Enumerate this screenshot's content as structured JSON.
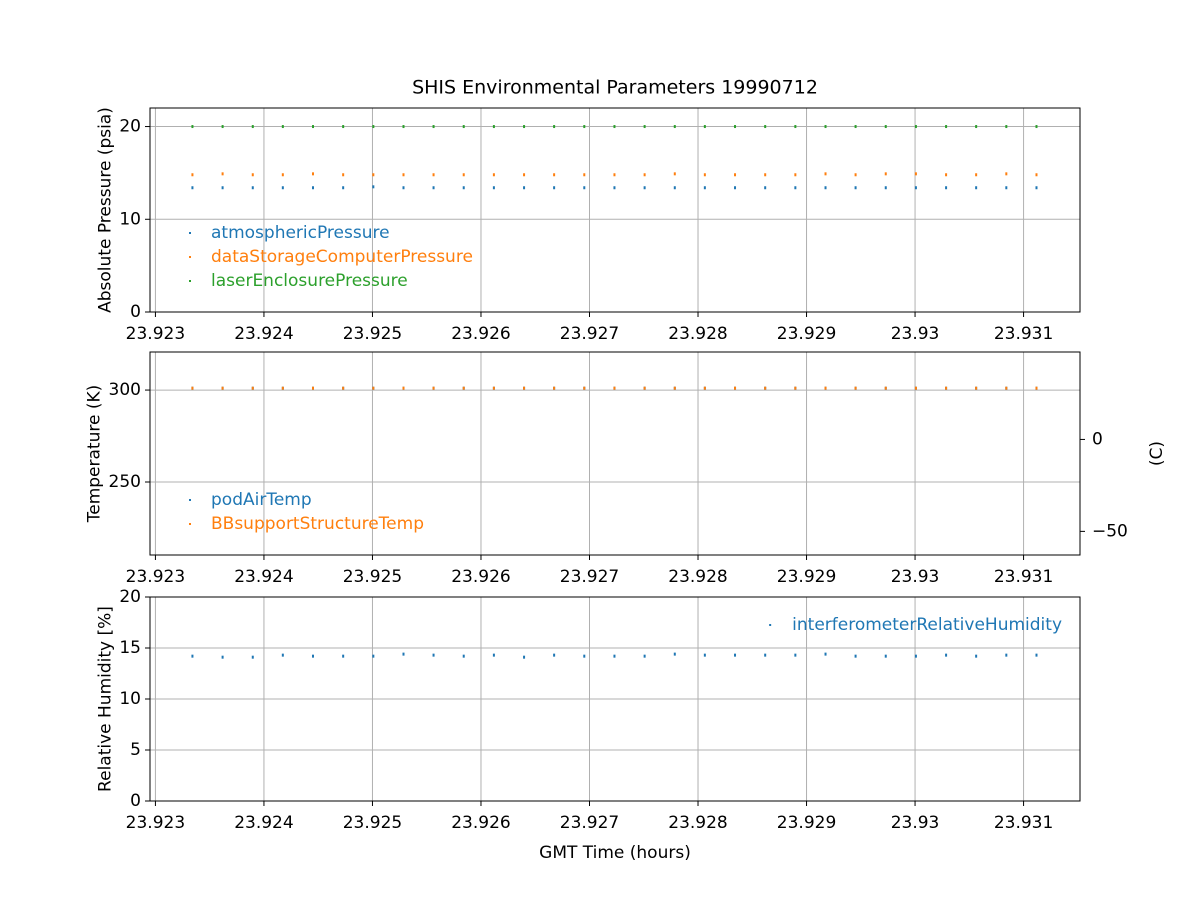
{
  "chart_data": [
    {
      "type": "scatter",
      "title": "SHIS Environmental Parameters 19990712",
      "ylabel": "Absolute Pressure (psia)",
      "x": [
        23.923341,
        23.923619,
        23.923897,
        23.924174,
        23.924452,
        23.92473,
        23.925008,
        23.925286,
        23.925563,
        23.925841,
        23.926119,
        23.926397,
        23.926674,
        23.926952,
        23.92723,
        23.927508,
        23.927786,
        23.928063,
        23.928341,
        23.928619,
        23.928897,
        23.929175,
        23.929452,
        23.92973,
        23.930008,
        23.930286,
        23.930563,
        23.930841,
        23.931119
      ],
      "series": [
        {
          "name": "atmosphericPressure",
          "color": "#1f77b4",
          "values": [
            13.4,
            13.4,
            13.4,
            13.4,
            13.4,
            13.4,
            13.5,
            13.4,
            13.4,
            13.4,
            13.4,
            13.4,
            13.4,
            13.4,
            13.4,
            13.4,
            13.4,
            13.4,
            13.4,
            13.4,
            13.4,
            13.4,
            13.4,
            13.4,
            13.4,
            13.4,
            13.4,
            13.4,
            13.4
          ]
        },
        {
          "name": "dataStorageComputerPressure",
          "color": "#ff7f0e",
          "values": [
            14.8,
            14.9,
            14.8,
            14.8,
            14.9,
            14.8,
            14.8,
            14.8,
            14.8,
            14.8,
            14.8,
            14.8,
            14.8,
            14.8,
            14.8,
            14.8,
            14.9,
            14.8,
            14.8,
            14.8,
            14.8,
            14.9,
            14.8,
            14.9,
            14.9,
            14.8,
            14.8,
            14.9,
            14.8
          ]
        },
        {
          "name": "laserEnclosurePressure",
          "color": "#2ca02c",
          "values": [
            20,
            20,
            20,
            20,
            20,
            20,
            20,
            20,
            20,
            20,
            20,
            20,
            20,
            20,
            20,
            20,
            20,
            20,
            20,
            20,
            20,
            20,
            20,
            20,
            20,
            20,
            20,
            20,
            20
          ]
        }
      ],
      "xlim": [
        23.92295,
        23.93152
      ],
      "ylim": [
        0,
        22
      ],
      "xticks": [
        23.923,
        23.924,
        23.925,
        23.926,
        23.927,
        23.928,
        23.929,
        23.93,
        23.931
      ],
      "yticks": [
        0,
        10,
        20
      ],
      "grid": true,
      "legend": "lower left"
    },
    {
      "type": "scatter",
      "ylabel": "Temperature (K)",
      "y2label": "(C)",
      "x": [
        23.923341,
        23.923619,
        23.923897,
        23.924174,
        23.924452,
        23.92473,
        23.925008,
        23.925286,
        23.925563,
        23.925841,
        23.926119,
        23.926397,
        23.926674,
        23.926952,
        23.92723,
        23.927508,
        23.927786,
        23.928063,
        23.928341,
        23.928619,
        23.928897,
        23.929175,
        23.929452,
        23.92973,
        23.930008,
        23.930286,
        23.930563,
        23.930841,
        23.931119
      ],
      "series": [
        {
          "name": "podAirTemp",
          "color": "#1f77b4",
          "values": [
            301,
            301,
            301,
            301,
            301,
            301,
            301,
            301,
            301,
            301,
            301,
            301,
            301,
            301,
            301,
            301,
            301,
            301,
            301,
            301,
            301,
            301,
            301,
            301,
            301,
            301,
            301,
            301,
            301
          ]
        },
        {
          "name": "BBsupportStructureTemp",
          "color": "#ff7f0e",
          "values": [
            301,
            301,
            301,
            301,
            301,
            301,
            301,
            301,
            301,
            301,
            301,
            301,
            301,
            301,
            301,
            301,
            301,
            301,
            301,
            301,
            301,
            301,
            301,
            301,
            301,
            301,
            301,
            301,
            301
          ]
        }
      ],
      "xlim": [
        23.92295,
        23.93152
      ],
      "ylim": [
        210.3,
        320.7
      ],
      "y2lim": [
        -62.85,
        47.55
      ],
      "xticks": [
        23.923,
        23.924,
        23.925,
        23.926,
        23.927,
        23.928,
        23.929,
        23.93,
        23.931
      ],
      "yticks": [
        250,
        300
      ],
      "y2ticks": [
        {
          "value": -50,
          "label": "−50"
        },
        0
      ],
      "grid": true,
      "legend": "lower left"
    },
    {
      "type": "scatter",
      "ylabel": "Relative Humidity [%]",
      "xlabel": "GMT Time (hours)",
      "x": [
        23.923341,
        23.923619,
        23.923897,
        23.924174,
        23.924452,
        23.92473,
        23.925008,
        23.925286,
        23.925563,
        23.925841,
        23.926119,
        23.926397,
        23.926674,
        23.926952,
        23.92723,
        23.927508,
        23.927786,
        23.928063,
        23.928341,
        23.928619,
        23.928897,
        23.929175,
        23.929452,
        23.92973,
        23.930008,
        23.930286,
        23.930563,
        23.930841,
        23.931119
      ],
      "series": [
        {
          "name": "interferometerRelativeHumidity",
          "color": "#1f77b4",
          "values": [
            14.2,
            14.1,
            14.1,
            14.3,
            14.2,
            14.2,
            14.2,
            14.4,
            14.3,
            14.2,
            14.3,
            14.1,
            14.3,
            14.2,
            14.2,
            14.2,
            14.4,
            14.3,
            14.3,
            14.3,
            14.3,
            14.4,
            14.2,
            14.2,
            14.2,
            14.3,
            14.2,
            14.3,
            14.3
          ]
        }
      ],
      "xlim": [
        23.92295,
        23.93152
      ],
      "ylim": [
        0,
        20
      ],
      "xticks": [
        23.923,
        23.924,
        23.925,
        23.926,
        23.927,
        23.928,
        23.929,
        23.93,
        23.931
      ],
      "yticks": [
        0,
        5,
        10,
        15,
        20
      ],
      "grid": true,
      "legend": "upper right"
    }
  ]
}
